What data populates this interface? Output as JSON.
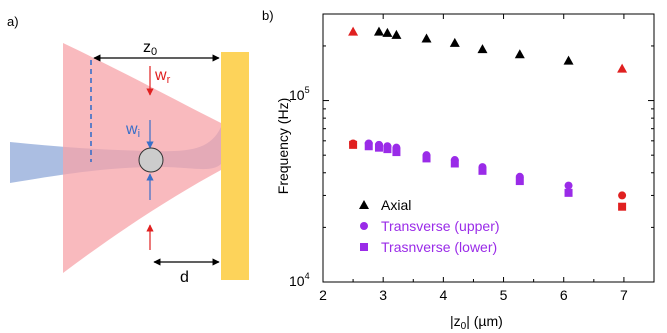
{
  "panel_a": {
    "label": "a)",
    "z0_label": "z",
    "z0_sub": "0",
    "wr_label": "w",
    "wr_sub": "r",
    "wi_label": "w",
    "wi_sub": "i",
    "d_label": "d",
    "colors": {
      "red_beam": "#f7a3a8",
      "blue_beam": "#8fa8d8",
      "mirror": "#fdd35a",
      "sphere": "#cccccc",
      "red_arrow": "#e02020",
      "blue_arrow": "#3a6fc8"
    }
  },
  "panel_b": {
    "label": "b)",
    "x_axis_label": "|z",
    "x_axis_sub": "0",
    "x_axis_unit": "| (µm)",
    "y_axis_label": "Frequency (Hz)",
    "x_ticks": [
      "2",
      "3",
      "4",
      "5",
      "6",
      "7"
    ],
    "y_tick_labels": {
      "t4_base": "10",
      "t4_exp": "4",
      "t5_base": "10",
      "t5_exp": "5"
    },
    "legend": [
      {
        "label": "Axial",
        "color": "#000000",
        "marker": "triangle"
      },
      {
        "label": "Transverse (upper)",
        "color": "#9a2be8",
        "marker": "circle"
      },
      {
        "label": "Trasnverse (lower)",
        "color": "#9a2be8",
        "marker": "square"
      }
    ]
  },
  "chart_data": {
    "type": "scatter",
    "x_label": "|z0| (µm)",
    "y_label": "Frequency (Hz)",
    "xlim": [
      2,
      7.5
    ],
    "ylim": [
      10000,
      300000
    ],
    "y_scale": "log",
    "grid": false,
    "legend_position": "bottom-left",
    "series": [
      {
        "name": "Axial",
        "marker": "triangle",
        "color": "#000000",
        "x": [
          2.5,
          2.93,
          3.07,
          3.22,
          3.72,
          4.19,
          4.65,
          5.27,
          6.08,
          6.97
        ],
        "y": [
          240000,
          240000,
          236000,
          230000,
          220000,
          208000,
          192000,
          180000,
          166000,
          150000
        ],
        "highlight_color": "#e02020",
        "highlight_indices": [
          0,
          9
        ]
      },
      {
        "name": "Transverse (upper)",
        "marker": "circle",
        "color": "#9a2be8",
        "x": [
          2.5,
          2.76,
          2.93,
          3.07,
          3.22,
          3.72,
          4.19,
          4.65,
          5.27,
          6.08,
          6.97
        ],
        "y": [
          58000,
          58000,
          57000,
          56000,
          55000,
          50000,
          47000,
          43000,
          38000,
          34000,
          30000
        ],
        "highlight_color": "#e02020",
        "highlight_indices": [
          0,
          10
        ]
      },
      {
        "name": "Trasnverse (lower)",
        "marker": "square",
        "color": "#9a2be8",
        "x": [
          2.5,
          2.76,
          2.93,
          3.07,
          3.22,
          3.72,
          4.19,
          4.65,
          5.27,
          6.08,
          6.97
        ],
        "y": [
          57000,
          56000,
          55000,
          54000,
          52000,
          48000,
          45000,
          41000,
          36000,
          31000,
          26000
        ],
        "highlight_color": "#e02020",
        "highlight_indices": [
          0,
          10
        ]
      }
    ]
  }
}
